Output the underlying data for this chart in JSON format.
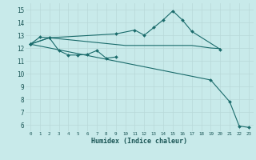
{
  "xlabel": "Humidex (Indice chaleur)",
  "bg_color": "#c8eaea",
  "grid_color": "#b8d8d8",
  "line_color": "#1a6b6b",
  "xlim": [
    -0.5,
    23.5
  ],
  "ylim": [
    5.5,
    15.5
  ],
  "xticks": [
    0,
    1,
    2,
    3,
    4,
    5,
    6,
    7,
    8,
    9,
    10,
    11,
    12,
    13,
    14,
    15,
    16,
    17,
    18,
    19,
    20,
    21,
    22,
    23
  ],
  "yticks": [
    6,
    7,
    8,
    9,
    10,
    11,
    12,
    13,
    14,
    15
  ],
  "line1_x": [
    0,
    1,
    2,
    9,
    11,
    12,
    13,
    14,
    15,
    16,
    17,
    20
  ],
  "line1_y": [
    12.3,
    12.85,
    12.8,
    13.1,
    13.4,
    13.0,
    13.6,
    14.2,
    14.9,
    14.2,
    13.3,
    11.9
  ],
  "line2_x": [
    0,
    2,
    3,
    4,
    5,
    6,
    7,
    8,
    9
  ],
  "line2_y": [
    12.3,
    12.8,
    11.8,
    11.45,
    11.45,
    11.5,
    11.8,
    11.2,
    11.3
  ],
  "line3_x": [
    0,
    2,
    10,
    12,
    15,
    17,
    19,
    20
  ],
  "line3_y": [
    12.3,
    12.8,
    12.2,
    12.2,
    12.2,
    12.2,
    12.0,
    11.95
  ],
  "line4_x": [
    0,
    19,
    21,
    22,
    23
  ],
  "line4_y": [
    12.3,
    9.5,
    7.8,
    5.9,
    5.8
  ]
}
